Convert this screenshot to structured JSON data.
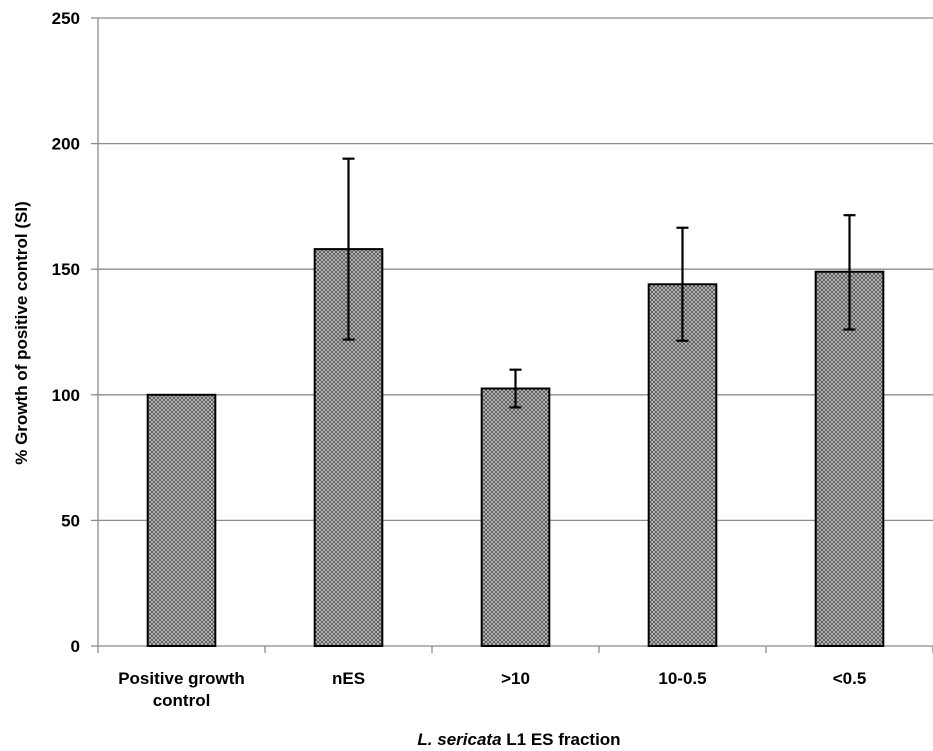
{
  "chart_data": {
    "type": "bar",
    "title": "",
    "xlabel_italic": "L. sericata",
    "xlabel_rest": " L1 ES fraction",
    "ylabel": "% Growth of positive control (SI)",
    "ylim": [
      0,
      250
    ],
    "yticks": [
      0,
      50,
      100,
      150,
      200,
      250
    ],
    "ytick_labels": [
      "0",
      "50",
      "100",
      "150",
      "200",
      "250"
    ],
    "grid": true,
    "categories": [
      [
        "Positive growth",
        "control"
      ],
      [
        "nES"
      ],
      [
        ">10"
      ],
      [
        "10-0.5"
      ],
      [
        "<0.5"
      ]
    ],
    "values": [
      100,
      158,
      102.5,
      144,
      149
    ],
    "error_low": [
      null,
      122,
      95,
      121.5,
      126
    ],
    "error_high": [
      null,
      194,
      110,
      166.5,
      171.5
    ],
    "colors": {
      "bar_fill": "#bdbdbd",
      "bar_hatch": "#4a4a4a",
      "grid": "#8c8c8c",
      "axis": "#8c8c8c"
    }
  }
}
